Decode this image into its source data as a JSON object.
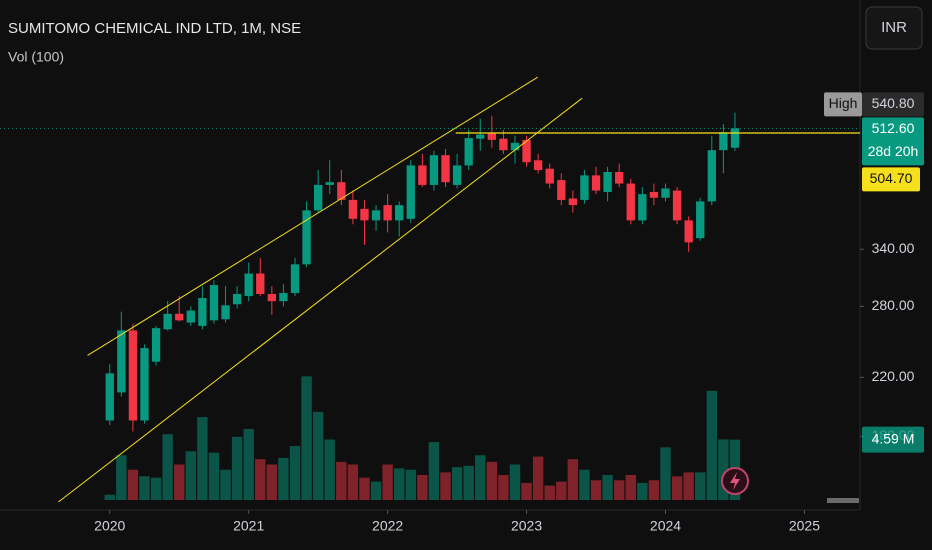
{
  "chart_data": {
    "type": "candlestick",
    "title": "SUMITOMO CHEMICAL IND LTD, 1M, NSE",
    "volume_title": "Vol (100)",
    "currency": "INR",
    "log_scale": true,
    "x": [
      "2020-01",
      "2020-02",
      "2020-03",
      "2020-04",
      "2020-05",
      "2020-06",
      "2020-07",
      "2020-08",
      "2020-09",
      "2020-10",
      "2020-11",
      "2020-12",
      "2021-01",
      "2021-02",
      "2021-03",
      "2021-04",
      "2021-05",
      "2021-06",
      "2021-07",
      "2021-08",
      "2021-09",
      "2021-10",
      "2021-11",
      "2021-12",
      "2022-01",
      "2022-02",
      "2022-03",
      "2022-04",
      "2022-05",
      "2022-06",
      "2022-07",
      "2022-08",
      "2022-09",
      "2022-10",
      "2022-11",
      "2022-12",
      "2023-01",
      "2023-02",
      "2023-03",
      "2023-04",
      "2023-05",
      "2023-06",
      "2023-07",
      "2023-08",
      "2023-09",
      "2023-10",
      "2023-11",
      "2023-12",
      "2024-01",
      "2024-02",
      "2024-03",
      "2024-04",
      "2024-05",
      "2024-06",
      "2024-07"
    ],
    "open": [
      190,
      209,
      258,
      190,
      232,
      259,
      273,
      265,
      262,
      267,
      268,
      282,
      290,
      313,
      292,
      285,
      293,
      323,
      388,
      423,
      427,
      402,
      390,
      375,
      395,
      375,
      377,
      452,
      423,
      468,
      423,
      452,
      495,
      505,
      495,
      476,
      493,
      460,
      447,
      430,
      404,
      402,
      437,
      413,
      442,
      425,
      375,
      413,
      405,
      415,
      375,
      353,
      400,
      476,
      480
    ],
    "high": [
      230,
      275,
      264,
      246,
      262,
      285,
      290,
      280,
      300,
      306,
      300,
      300,
      325,
      330,
      300,
      302,
      330,
      400,
      445,
      460,
      445,
      415,
      402,
      395,
      410,
      400,
      460,
      470,
      475,
      478,
      470,
      510,
      530,
      535,
      510,
      500,
      500,
      470,
      455,
      440,
      415,
      445,
      450,
      450,
      455,
      432,
      420,
      425,
      425,
      420,
      380,
      405,
      500,
      520,
      540.8
    ],
    "low": [
      187,
      206,
      183,
      188,
      229,
      258,
      266,
      262,
      259,
      264,
      265,
      278,
      285,
      290,
      272,
      280,
      290,
      320,
      385,
      410,
      395,
      370,
      345,
      362,
      360,
      355,
      372,
      420,
      415,
      420,
      418,
      445,
      475,
      480,
      470,
      455,
      450,
      440,
      418,
      395,
      385,
      397,
      410,
      400,
      420,
      370,
      370,
      395,
      400,
      370,
      337,
      350,
      395,
      440,
      475
    ],
    "close": [
      223,
      258,
      190,
      243,
      260,
      273,
      267,
      276,
      288,
      301,
      281,
      292,
      313,
      292,
      285,
      293,
      323,
      388,
      423,
      427,
      402,
      377,
      375,
      388,
      375,
      395,
      452,
      423,
      468,
      427,
      452,
      496,
      502,
      493,
      476,
      488,
      457,
      445,
      425,
      402,
      395,
      437,
      415,
      442,
      425,
      375,
      410,
      405,
      418,
      375,
      348,
      400,
      476,
      506,
      512.6
    ],
    "volume": [
      0.4,
      3.4,
      2.3,
      1.8,
      1.7,
      5.0,
      2.7,
      3.7,
      6.3,
      3.6,
      2.3,
      4.8,
      5.4,
      3.1,
      2.7,
      3.2,
      4.1,
      9.4,
      6.7,
      4.6,
      2.9,
      2.7,
      1.7,
      1.4,
      2.7,
      2.4,
      2.3,
      1.9,
      4.4,
      2.1,
      2.5,
      2.6,
      3.4,
      2.9,
      1.9,
      2.7,
      1.3,
      3.3,
      1.1,
      1.4,
      3.1,
      2.3,
      1.5,
      1.9,
      1.5,
      1.9,
      1.3,
      1.5,
      4.0,
      1.8,
      2.1,
      2.1,
      8.3,
      4.6,
      4.59
    ],
    "volume_last_label": "4.59 M",
    "up_color": "#089981",
    "down_color": "#f23645",
    "ylim": [
      145,
      793
    ],
    "vlim": [
      0,
      38
    ],
    "xlim": [
      2019.21,
      2025.4
    ],
    "yticks": [
      {
        "value": 180,
        "label": "180.00"
      },
      {
        "value": 220,
        "label": "220.00"
      },
      {
        "value": 280,
        "label": "280.00"
      },
      {
        "value": 340,
        "label": "340.00"
      }
    ],
    "xticks": [
      2020,
      2021,
      2022,
      2023,
      2024,
      2025
    ],
    "high_marker": {
      "label": "High",
      "value": 540.8,
      "value_label": "540.80"
    },
    "last_price": {
      "value": 512.6,
      "value_label": "512.60",
      "countdown": "28d 20h"
    },
    "level": {
      "value": 504.7,
      "value_label": "504.70",
      "color": "#f5e11b"
    },
    "trendlines": [
      {
        "x": [
          2019.84,
          2023.08
        ],
        "y": [
          237,
          610
        ]
      },
      {
        "x": [
          2019.63,
          2023.4
        ],
        "y": [
          144,
          568
        ]
      }
    ],
    "level_start": 2022.49
  }
}
